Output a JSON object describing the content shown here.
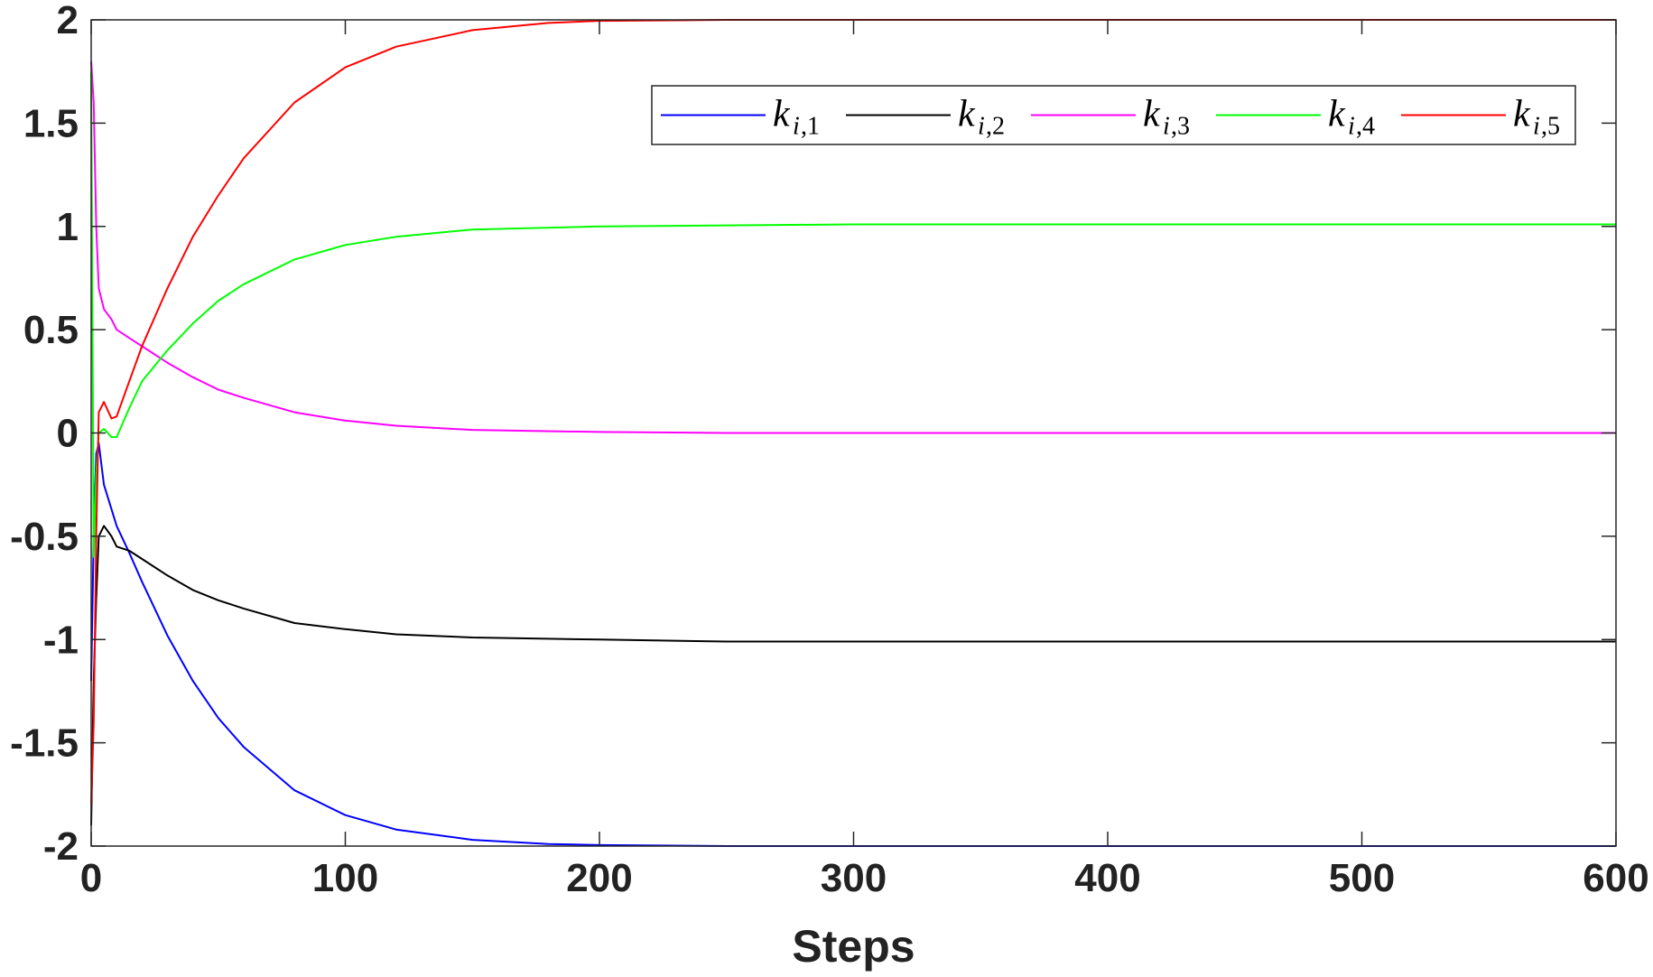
{
  "chart_data": {
    "type": "line",
    "title": "",
    "xlabel": "Steps",
    "ylabel": "",
    "xlim": [
      0,
      600
    ],
    "ylim": [
      -2,
      2
    ],
    "x_ticks": [
      0,
      100,
      200,
      300,
      400,
      500,
      600
    ],
    "x_tick_labels": [
      "0",
      "100",
      "200",
      "300",
      "400",
      "500",
      "600"
    ],
    "y_ticks": [
      -2,
      -1.5,
      -1,
      -0.5,
      0,
      0.5,
      1,
      1.5,
      2
    ],
    "y_tick_labels": [
      "-2",
      "-1.5",
      "-1",
      "-0.5",
      "0",
      "0.5",
      "1",
      "1.5",
      "2"
    ],
    "grid": false,
    "legend_position": "top-right",
    "legend_orientation": "horizontal",
    "series": [
      {
        "name": "k_{i,1}",
        "legend_base": "k",
        "legend_sub_i": "i",
        "legend_sub_rest": ",1",
        "color": "#0000ff",
        "x": [
          0,
          1,
          2,
          3,
          5,
          10,
          15,
          20,
          30,
          40,
          50,
          60,
          80,
          100,
          120,
          150,
          180,
          200,
          250,
          300,
          400,
          500,
          600
        ],
        "values": [
          -1.2,
          -0.5,
          -0.1,
          -0.05,
          -0.25,
          -0.45,
          -0.58,
          -0.72,
          -0.98,
          -1.2,
          -1.38,
          -1.52,
          -1.73,
          -1.85,
          -1.92,
          -1.97,
          -1.99,
          -1.995,
          -2.0,
          -2.0,
          -2.0,
          -2.0,
          -2.0
        ]
      },
      {
        "name": "k_{i,2}",
        "legend_base": "k",
        "legend_sub_i": "i",
        "legend_sub_rest": ",2",
        "color": "#000000",
        "x": [
          0,
          1,
          2,
          3,
          5,
          8,
          10,
          15,
          20,
          30,
          40,
          50,
          60,
          80,
          100,
          120,
          150,
          200,
          250,
          300,
          400,
          500,
          600
        ],
        "values": [
          -1.9,
          -1.2,
          -0.8,
          -0.5,
          -0.45,
          -0.5,
          -0.55,
          -0.57,
          -0.61,
          -0.69,
          -0.76,
          -0.81,
          -0.85,
          -0.92,
          -0.95,
          -0.975,
          -0.99,
          -1.0,
          -1.01,
          -1.01,
          -1.01,
          -1.01,
          -1.01
        ]
      },
      {
        "name": "k_{i,3}",
        "legend_base": "k",
        "legend_sub_i": "i",
        "legend_sub_rest": ",3",
        "color": "#ff00ff",
        "x": [
          0,
          1,
          2,
          3,
          5,
          8,
          10,
          15,
          20,
          30,
          40,
          50,
          60,
          80,
          100,
          120,
          150,
          200,
          250,
          300,
          400,
          500,
          600
        ],
        "values": [
          1.8,
          1.6,
          1.0,
          0.7,
          0.6,
          0.55,
          0.5,
          0.46,
          0.42,
          0.34,
          0.27,
          0.21,
          0.17,
          0.1,
          0.06,
          0.035,
          0.015,
          0.005,
          0.0,
          0.0,
          0.0,
          0.0,
          0.0
        ]
      },
      {
        "name": "k_{i,4}",
        "legend_base": "k",
        "legend_sub_i": "i",
        "legend_sub_rest": ",4",
        "color": "#00ff00",
        "x": [
          0,
          1,
          2,
          3,
          5,
          8,
          10,
          15,
          20,
          30,
          40,
          50,
          60,
          80,
          100,
          120,
          150,
          200,
          250,
          300,
          400,
          500,
          600
        ],
        "values": [
          1.75,
          -0.6,
          -0.2,
          0.0,
          0.02,
          -0.02,
          -0.02,
          0.12,
          0.25,
          0.4,
          0.53,
          0.64,
          0.72,
          0.84,
          0.91,
          0.95,
          0.985,
          1.0,
          1.005,
          1.01,
          1.01,
          1.01,
          1.01
        ]
      },
      {
        "name": "k_{i,5}",
        "legend_base": "k",
        "legend_sub_i": "i",
        "legend_sub_rest": ",5",
        "color": "#ff0000",
        "x": [
          0,
          1,
          2,
          3,
          5,
          8,
          10,
          15,
          20,
          30,
          40,
          50,
          60,
          80,
          100,
          120,
          150,
          180,
          200,
          250,
          300,
          400,
          500,
          600
        ],
        "values": [
          -1.8,
          -1.4,
          -0.5,
          0.1,
          0.15,
          0.07,
          0.08,
          0.25,
          0.42,
          0.7,
          0.95,
          1.15,
          1.33,
          1.6,
          1.77,
          1.87,
          1.95,
          1.985,
          1.995,
          2.0,
          2.0,
          2.0,
          2.0,
          2.0
        ]
      }
    ]
  }
}
